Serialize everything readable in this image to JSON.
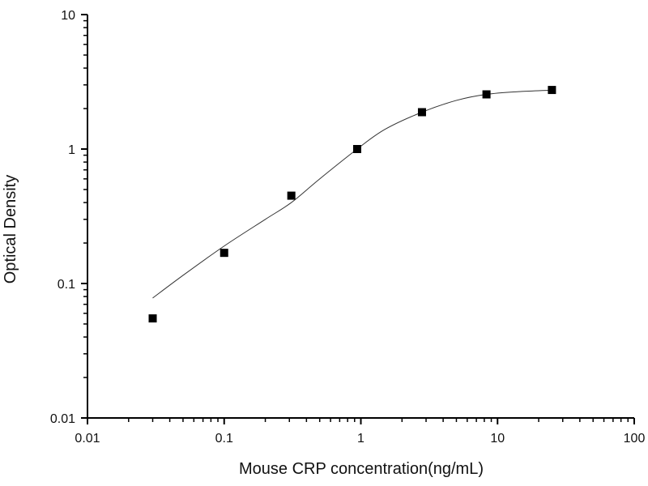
{
  "chart_data": {
    "type": "scatter",
    "title": "",
    "xlabel": "Mouse CRP concentration(ng/mL)",
    "ylabel": "Optical Density",
    "xscale": "log",
    "yscale": "log",
    "xlim": [
      0.01,
      100
    ],
    "ylim": [
      0.01,
      10
    ],
    "x_ticks": [
      0.01,
      0.1,
      1,
      10,
      100
    ],
    "x_tick_labels": [
      "0.01",
      "0.1",
      "1",
      "10",
      "100"
    ],
    "y_ticks": [
      0.01,
      0.1,
      1,
      10
    ],
    "y_tick_labels": [
      "0.01",
      "0.1",
      "1",
      "10"
    ],
    "grid": false,
    "legend": "none",
    "series": [
      {
        "name": "standards",
        "marker": "square",
        "color": "#000000",
        "x": [
          0.03,
          0.1,
          0.31,
          0.94,
          2.8,
          8.3,
          25
        ],
        "y": [
          0.055,
          0.169,
          0.45,
          1.0,
          1.88,
          2.55,
          2.75
        ]
      },
      {
        "name": "fitted-curve",
        "style": "thin-line",
        "color": "#333333",
        "x": [
          0.03,
          0.05,
          0.1,
          0.2,
          0.31,
          0.5,
          0.94,
          1.5,
          2.8,
          5,
          8.3,
          15,
          25
        ],
        "y": [
          0.078,
          0.115,
          0.19,
          0.3,
          0.4,
          0.6,
          1.0,
          1.4,
          1.88,
          2.3,
          2.55,
          2.68,
          2.74
        ]
      }
    ]
  }
}
